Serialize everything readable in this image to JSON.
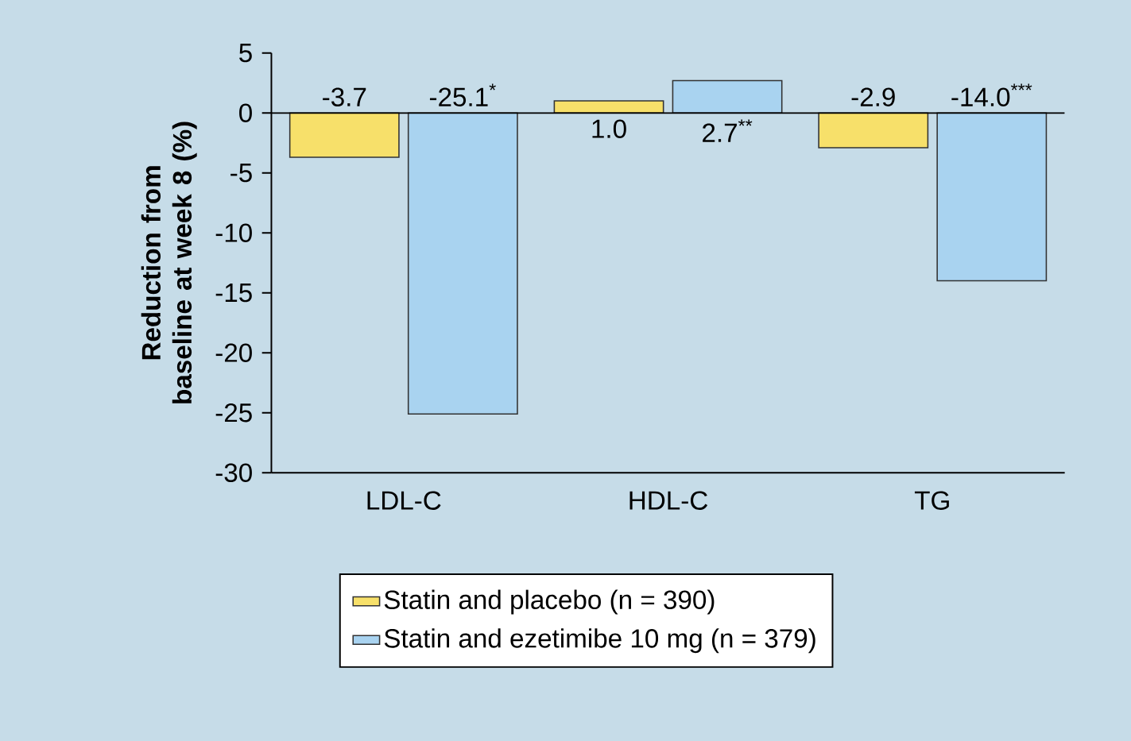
{
  "chart_data": {
    "type": "bar",
    "ylabel": "Reduction from baseline at week 8 (%)",
    "categories": [
      "LDL-C",
      "HDL-C",
      "TG"
    ],
    "series": [
      {
        "name": "Statin and placebo (n = 390)",
        "color": "#f7e06a",
        "values": [
          -3.7,
          1.0,
          -2.9
        ],
        "value_labels": [
          "-3.7",
          "1.0",
          "-2.9"
        ]
      },
      {
        "name": "Statin and ezetimibe 10 mg (n = 379)",
        "color": "#a9d3f0",
        "values": [
          -25.1,
          2.7,
          -14.0
        ],
        "value_labels": [
          "-25.1$^{*}$",
          "2.7$^{**}$",
          "-14.0$^{***}$"
        ]
      }
    ],
    "ylim": [
      -30,
      5
    ],
    "yticks": [
      -30,
      -25,
      -20,
      -15,
      -10,
      -5,
      0,
      5
    ],
    "ref_lines": [
      {
        "axis": "y",
        "value": 0
      }
    ],
    "grid": false,
    "legend": "bottom"
  }
}
